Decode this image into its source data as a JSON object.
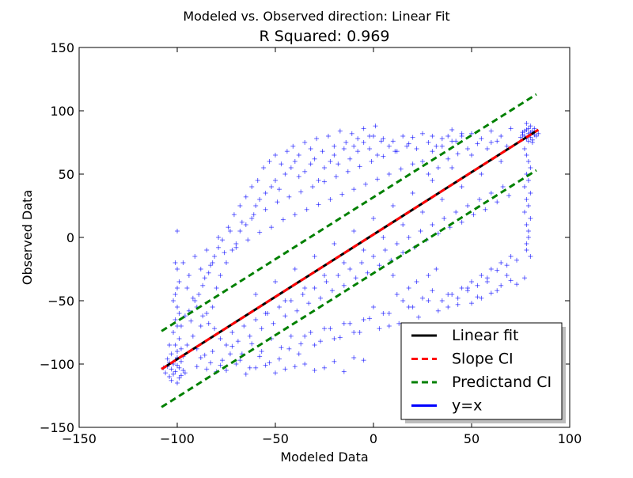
{
  "chart_data": {
    "type": "scatter",
    "suptitle": "Modeled vs. Observed direction: Linear Fit",
    "title": "R Squared: 0.969",
    "xlabel": "Modeled Data",
    "ylabel": "Observed Data",
    "xlim": [
      -150,
      100
    ],
    "ylim": [
      -150,
      150
    ],
    "xticks": [
      -150,
      -100,
      -50,
      0,
      50,
      100
    ],
    "yticks": [
      -150,
      -100,
      -50,
      0,
      50,
      100,
      150
    ],
    "xtick_labels": [
      "−150",
      "−100",
      "−50",
      "0",
      "50",
      "100"
    ],
    "ytick_labels": [
      "−150",
      "−100",
      "−50",
      "0",
      "50",
      "100",
      "150"
    ],
    "grid": false,
    "legend_position": "lower-right",
    "colors": {
      "scatter": "#0000ff",
      "linear_fit": "#000000",
      "slope_ci": "#ff0000",
      "predictand_ci": "#008000",
      "identity": "#0000ff"
    },
    "series": [
      {
        "name": "Linear fit",
        "kind": "line",
        "style": "solid",
        "x": [
          -108,
          84
        ],
        "y": [
          -104,
          85
        ]
      },
      {
        "name": "Slope CI",
        "kind": "line",
        "style": "dashed",
        "x": [
          -108,
          84
        ],
        "y": [
          -104,
          85
        ]
      },
      {
        "name": "Predictand CI",
        "kind": "line",
        "style": "dashed",
        "segments": [
          {
            "x": [
              -108,
              83
            ],
            "y": [
              -74,
              113
            ]
          },
          {
            "x": [
              -108,
              83
            ],
            "y": [
              -134,
              53
            ]
          }
        ]
      },
      {
        "name": "y=x",
        "kind": "line",
        "style": "solid",
        "x": [],
        "y": []
      }
    ],
    "scatter_points": [
      [
        -103,
        -104
      ],
      [
        -101,
        -106
      ],
      [
        -99,
        -103
      ],
      [
        -104,
        -99
      ],
      [
        -100,
        -101
      ],
      [
        -102,
        -108
      ],
      [
        -98,
        -109
      ],
      [
        -105,
        -102
      ],
      [
        -101,
        -97
      ],
      [
        -99,
        -111
      ],
      [
        -103,
        -113
      ],
      [
        -100,
        -95
      ],
      [
        -97,
        -105
      ],
      [
        -106,
        -107
      ],
      [
        -102,
        -100
      ],
      [
        -100,
        -90
      ],
      [
        -101,
        -85
      ],
      [
        -99,
        -80
      ],
      [
        -102,
        -75
      ],
      [
        -100,
        -70
      ],
      [
        -101,
        -65
      ],
      [
        -99,
        -60
      ],
      [
        -100,
        -55
      ],
      [
        -102,
        -50
      ],
      [
        -101,
        -45
      ],
      [
        -100,
        -40
      ],
      [
        -99,
        -35
      ],
      [
        -100,
        -25
      ],
      [
        -101,
        -20
      ],
      [
        -100,
        5
      ],
      [
        -104,
        -85
      ],
      [
        -98,
        -88
      ],
      [
        -103,
        -92
      ],
      [
        -97,
        -94
      ],
      [
        -105,
        -96
      ],
      [
        -107,
        -103
      ],
      [
        -96,
        -107
      ],
      [
        -104,
        -110
      ],
      [
        -100,
        -115
      ],
      [
        -98,
        -98
      ],
      [
        77,
        80
      ],
      [
        79,
        82
      ],
      [
        81,
        84
      ],
      [
        78,
        78
      ],
      [
        80,
        79
      ],
      [
        82,
        81
      ],
      [
        76,
        83
      ],
      [
        79,
        86
      ],
      [
        81,
        77
      ],
      [
        78,
        85
      ],
      [
        80,
        88
      ],
      [
        83,
        80
      ],
      [
        75,
        79
      ],
      [
        77,
        84
      ],
      [
        82,
        86
      ],
      [
        79,
        76
      ],
      [
        76,
        81
      ],
      [
        80,
        83
      ],
      [
        78,
        90
      ],
      [
        84,
        82
      ],
      [
        77,
        70
      ],
      [
        78,
        65
      ],
      [
        79,
        60
      ],
      [
        80,
        55
      ],
      [
        78,
        50
      ],
      [
        79,
        45
      ],
      [
        77,
        40
      ],
      [
        80,
        35
      ],
      [
        78,
        30
      ],
      [
        79,
        25
      ],
      [
        77,
        20
      ],
      [
        80,
        15
      ],
      [
        78,
        10
      ],
      [
        79,
        0
      ],
      [
        78,
        -5
      ],
      [
        80,
        -15
      ],
      [
        77,
        -32
      ],
      [
        78,
        -10
      ],
      [
        79,
        5
      ],
      [
        81,
        75
      ],
      [
        -90,
        -102
      ],
      [
        -85,
        -104
      ],
      [
        -80,
        -106
      ],
      [
        -75,
        -105
      ],
      [
        -70,
        -100
      ],
      [
        -65,
        -108
      ],
      [
        -60,
        -103
      ],
      [
        -55,
        -101
      ],
      [
        -50,
        -107
      ],
      [
        -45,
        -104
      ],
      [
        -40,
        -102
      ],
      [
        -35,
        -100
      ],
      [
        -30,
        -105
      ],
      [
        -25,
        -103
      ],
      [
        -20,
        -98
      ],
      [
        -15,
        -106
      ],
      [
        -10,
        -95
      ],
      [
        -5,
        -97
      ],
      [
        -88,
        -95
      ],
      [
        -83,
        -99
      ],
      [
        -78,
        -101
      ],
      [
        -73,
        -92
      ],
      [
        -68,
        -97
      ],
      [
        -63,
        -103
      ],
      [
        -58,
        -94
      ],
      [
        -53,
        -99
      ],
      [
        -48,
        -96
      ],
      [
        -43,
        -88
      ],
      [
        -38,
        -92
      ],
      [
        -95,
        -85
      ],
      [
        -92,
        -78
      ],
      [
        -88,
        -70
      ],
      [
        -85,
        -60
      ],
      [
        -82,
        -55
      ],
      [
        -80,
        -40
      ],
      [
        -78,
        -30
      ],
      [
        -75,
        -20
      ],
      [
        -72,
        -10
      ],
      [
        -70,
        -5
      ],
      [
        -68,
        5
      ],
      [
        -65,
        10
      ],
      [
        -62,
        15
      ],
      [
        -60,
        25
      ],
      [
        -58,
        30
      ],
      [
        -55,
        35
      ],
      [
        -52,
        40
      ],
      [
        -50,
        45
      ],
      [
        -48,
        38
      ],
      [
        -45,
        50
      ],
      [
        -42,
        55
      ],
      [
        -40,
        60
      ],
      [
        -38,
        48
      ],
      [
        -35,
        52
      ],
      [
        -32,
        58
      ],
      [
        -30,
        62
      ],
      [
        -28,
        45
      ],
      [
        -25,
        55
      ],
      [
        -22,
        60
      ],
      [
        -20,
        65
      ],
      [
        -18,
        58
      ],
      [
        -15,
        70
      ],
      [
        -12,
        62
      ],
      [
        -10,
        72
      ],
      [
        -8,
        68
      ],
      [
        -5,
        75
      ],
      [
        -2,
        70
      ],
      [
        0,
        80
      ],
      [
        2,
        65
      ],
      [
        5,
        78
      ],
      [
        8,
        72
      ],
      [
        10,
        76
      ],
      [
        12,
        68
      ],
      [
        15,
        80
      ],
      [
        18,
        74
      ],
      [
        20,
        79
      ],
      [
        22,
        70
      ],
      [
        25,
        82
      ],
      [
        28,
        75
      ],
      [
        30,
        80
      ],
      [
        32,
        72
      ],
      [
        35,
        78
      ],
      [
        38,
        80
      ],
      [
        40,
        85
      ],
      [
        42,
        76
      ],
      [
        45,
        82
      ],
      [
        -95,
        -40
      ],
      [
        -92,
        -48
      ],
      [
        -90,
        -55
      ],
      [
        -87,
        -62
      ],
      [
        -84,
        -68
      ],
      [
        -81,
        -72
      ],
      [
        -78,
        -80
      ],
      [
        -75,
        -85
      ],
      [
        -72,
        -75
      ],
      [
        -69,
        -82
      ],
      [
        -66,
        -70
      ],
      [
        -63,
        -78
      ],
      [
        -60,
        -65
      ],
      [
        -57,
        -72
      ],
      [
        -54,
        -60
      ],
      [
        -51,
        -68
      ],
      [
        -48,
        -55
      ],
      [
        -45,
        -62
      ],
      [
        -42,
        -50
      ],
      [
        -39,
        -58
      ],
      [
        -36,
        -45
      ],
      [
        -33,
        -52
      ],
      [
        -30,
        -40
      ],
      [
        -27,
        -48
      ],
      [
        -24,
        -35
      ],
      [
        -21,
        -42
      ],
      [
        -18,
        -30
      ],
      [
        -15,
        -38
      ],
      [
        -12,
        -25
      ],
      [
        -9,
        -32
      ],
      [
        -6,
        -20
      ],
      [
        -3,
        -28
      ],
      [
        0,
        -15
      ],
      [
        3,
        -22
      ],
      [
        6,
        -10
      ],
      [
        9,
        -18
      ],
      [
        12,
        -5
      ],
      [
        15,
        -12
      ],
      [
        18,
        0
      ],
      [
        21,
        -8
      ],
      [
        24,
        5
      ],
      [
        27,
        -2
      ],
      [
        30,
        10
      ],
      [
        33,
        3
      ],
      [
        36,
        15
      ],
      [
        39,
        8
      ],
      [
        42,
        20
      ],
      [
        45,
        12
      ],
      [
        48,
        25
      ],
      [
        51,
        18
      ],
      [
        54,
        30
      ],
      [
        57,
        22
      ],
      [
        60,
        35
      ],
      [
        63,
        28
      ],
      [
        66,
        40
      ],
      [
        69,
        33
      ],
      [
        -97,
        -20
      ],
      [
        -94,
        -30
      ],
      [
        -91,
        -15
      ],
      [
        -88,
        -25
      ],
      [
        -85,
        -10
      ],
      [
        -82,
        -20
      ],
      [
        -79,
        0
      ],
      [
        -76,
        -12
      ],
      [
        -73,
        5
      ],
      [
        -70,
        -8
      ],
      [
        -67,
        12
      ],
      [
        -64,
        -2
      ],
      [
        -61,
        18
      ],
      [
        -58,
        4
      ],
      [
        -55,
        22
      ],
      [
        -52,
        8
      ],
      [
        -49,
        28
      ],
      [
        -46,
        14
      ],
      [
        -43,
        32
      ],
      [
        -40,
        18
      ],
      [
        -37,
        36
      ],
      [
        -34,
        22
      ],
      [
        -31,
        40
      ],
      [
        -28,
        26
      ],
      [
        -25,
        44
      ],
      [
        -22,
        30
      ],
      [
        -19,
        48
      ],
      [
        -16,
        34
      ],
      [
        -13,
        52
      ],
      [
        -10,
        38
      ],
      [
        -7,
        56
      ],
      [
        -4,
        42
      ],
      [
        -1,
        60
      ],
      [
        2,
        46
      ],
      [
        5,
        64
      ],
      [
        8,
        50
      ],
      [
        11,
        68
      ],
      [
        14,
        54
      ],
      [
        17,
        72
      ],
      [
        20,
        58
      ],
      [
        -90,
        -88
      ],
      [
        -86,
        -93
      ],
      [
        -82,
        -90
      ],
      [
        -77,
        -97
      ],
      [
        -72,
        -86
      ],
      [
        -67,
        -92
      ],
      [
        -62,
        -84
      ],
      [
        -57,
        -90
      ],
      [
        -52,
        -80
      ],
      [
        -47,
        -87
      ],
      [
        -42,
        -78
      ],
      [
        -37,
        -84
      ],
      [
        -32,
        -75
      ],
      [
        -27,
        -82
      ],
      [
        -22,
        -72
      ],
      [
        -17,
        -79
      ],
      [
        -12,
        -68
      ],
      [
        -7,
        -75
      ],
      [
        -2,
        -64
      ],
      [
        3,
        -72
      ],
      [
        8,
        -60
      ],
      [
        13,
        -68
      ],
      [
        18,
        -55
      ],
      [
        23,
        -63
      ],
      [
        28,
        -50
      ],
      [
        33,
        -58
      ],
      [
        38,
        -45
      ],
      [
        43,
        -53
      ],
      [
        48,
        -40
      ],
      [
        53,
        -47
      ],
      [
        58,
        -35
      ],
      [
        63,
        -42
      ],
      [
        68,
        -30
      ],
      [
        73,
        -37
      ],
      [
        -60,
        -45
      ],
      [
        -50,
        -35
      ],
      [
        -40,
        -25
      ],
      [
        -30,
        -15
      ],
      [
        -20,
        -5
      ],
      [
        -10,
        5
      ],
      [
        0,
        15
      ],
      [
        10,
        25
      ],
      [
        20,
        35
      ],
      [
        30,
        45
      ],
      [
        40,
        55
      ],
      [
        50,
        65
      ],
      [
        60,
        75
      ],
      [
        -55,
        -60
      ],
      [
        -45,
        -50
      ],
      [
        -35,
        -40
      ],
      [
        -25,
        -30
      ],
      [
        -15,
        -20
      ],
      [
        -5,
        -10
      ],
      [
        5,
        0
      ],
      [
        15,
        10
      ],
      [
        25,
        20
      ],
      [
        35,
        30
      ],
      [
        45,
        40
      ],
      [
        55,
        50
      ],
      [
        65,
        60
      ],
      [
        -98,
        -70
      ],
      [
        -96,
        -62
      ],
      [
        -94,
        -58
      ],
      [
        -93,
        -66
      ],
      [
        -91,
        -50
      ],
      [
        -89,
        -45
      ],
      [
        -87,
        -38
      ],
      [
        -86,
        -32
      ],
      [
        -84,
        -28
      ],
      [
        -83,
        -22
      ],
      [
        -81,
        -15
      ],
      [
        -79,
        -8
      ],
      [
        -77,
        -2
      ],
      [
        -74,
        8
      ],
      [
        -71,
        18
      ],
      [
        -68,
        25
      ],
      [
        -65,
        32
      ],
      [
        -62,
        40
      ],
      [
        -59,
        45
      ],
      [
        -56,
        55
      ],
      [
        -53,
        60
      ],
      [
        -50,
        65
      ],
      [
        -47,
        58
      ],
      [
        -44,
        68
      ],
      [
        -41,
        72
      ],
      [
        -38,
        65
      ],
      [
        -35,
        75
      ],
      [
        -32,
        70
      ],
      [
        -29,
        78
      ],
      [
        -26,
        68
      ],
      [
        -23,
        80
      ],
      [
        -20,
        72
      ],
      [
        -17,
        84
      ],
      [
        -14,
        75
      ],
      [
        -11,
        82
      ],
      [
        -8,
        78
      ],
      [
        -5,
        86
      ],
      [
        -2,
        80
      ],
      [
        1,
        88
      ],
      [
        4,
        76
      ],
      [
        35,
        -50
      ],
      [
        40,
        -45
      ],
      [
        45,
        -40
      ],
      [
        50,
        -35
      ],
      [
        55,
        -30
      ],
      [
        60,
        -25
      ],
      [
        65,
        -20
      ],
      [
        70,
        -15
      ],
      [
        38,
        -55
      ],
      [
        43,
        -48
      ],
      [
        48,
        -42
      ],
      [
        53,
        -38
      ],
      [
        58,
        -32
      ],
      [
        63,
        -26
      ],
      [
        68,
        -22
      ],
      [
        73,
        -18
      ],
      [
        50,
        -52
      ],
      [
        55,
        -48
      ],
      [
        60,
        -44
      ],
      [
        65,
        -38
      ],
      [
        70,
        -34
      ],
      [
        25,
        60
      ],
      [
        30,
        68
      ],
      [
        35,
        72
      ],
      [
        40,
        76
      ],
      [
        45,
        80
      ],
      [
        50,
        82
      ],
      [
        55,
        78
      ],
      [
        60,
        84
      ],
      [
        65,
        80
      ],
      [
        70,
        86
      ],
      [
        28,
        50
      ],
      [
        33,
        55
      ],
      [
        38,
        62
      ],
      [
        43,
        66
      ],
      [
        48,
        70
      ],
      [
        53,
        74
      ],
      [
        58,
        70
      ],
      [
        63,
        76
      ],
      [
        68,
        72
      ],
      [
        10,
        -30
      ],
      [
        12,
        -45
      ],
      [
        15,
        -50
      ],
      [
        18,
        -40
      ],
      [
        20,
        -55
      ],
      [
        22,
        -35
      ],
      [
        25,
        -48
      ],
      [
        28,
        -30
      ],
      [
        30,
        -42
      ],
      [
        32,
        -25
      ],
      [
        5,
        -60
      ],
      [
        8,
        -70
      ],
      [
        -5,
        -65
      ],
      [
        0,
        -55
      ],
      [
        -10,
        -75
      ],
      [
        -15,
        -68
      ],
      [
        -20,
        -80
      ],
      [
        -25,
        -72
      ],
      [
        -30,
        -85
      ],
      [
        -35,
        -78
      ]
    ]
  }
}
